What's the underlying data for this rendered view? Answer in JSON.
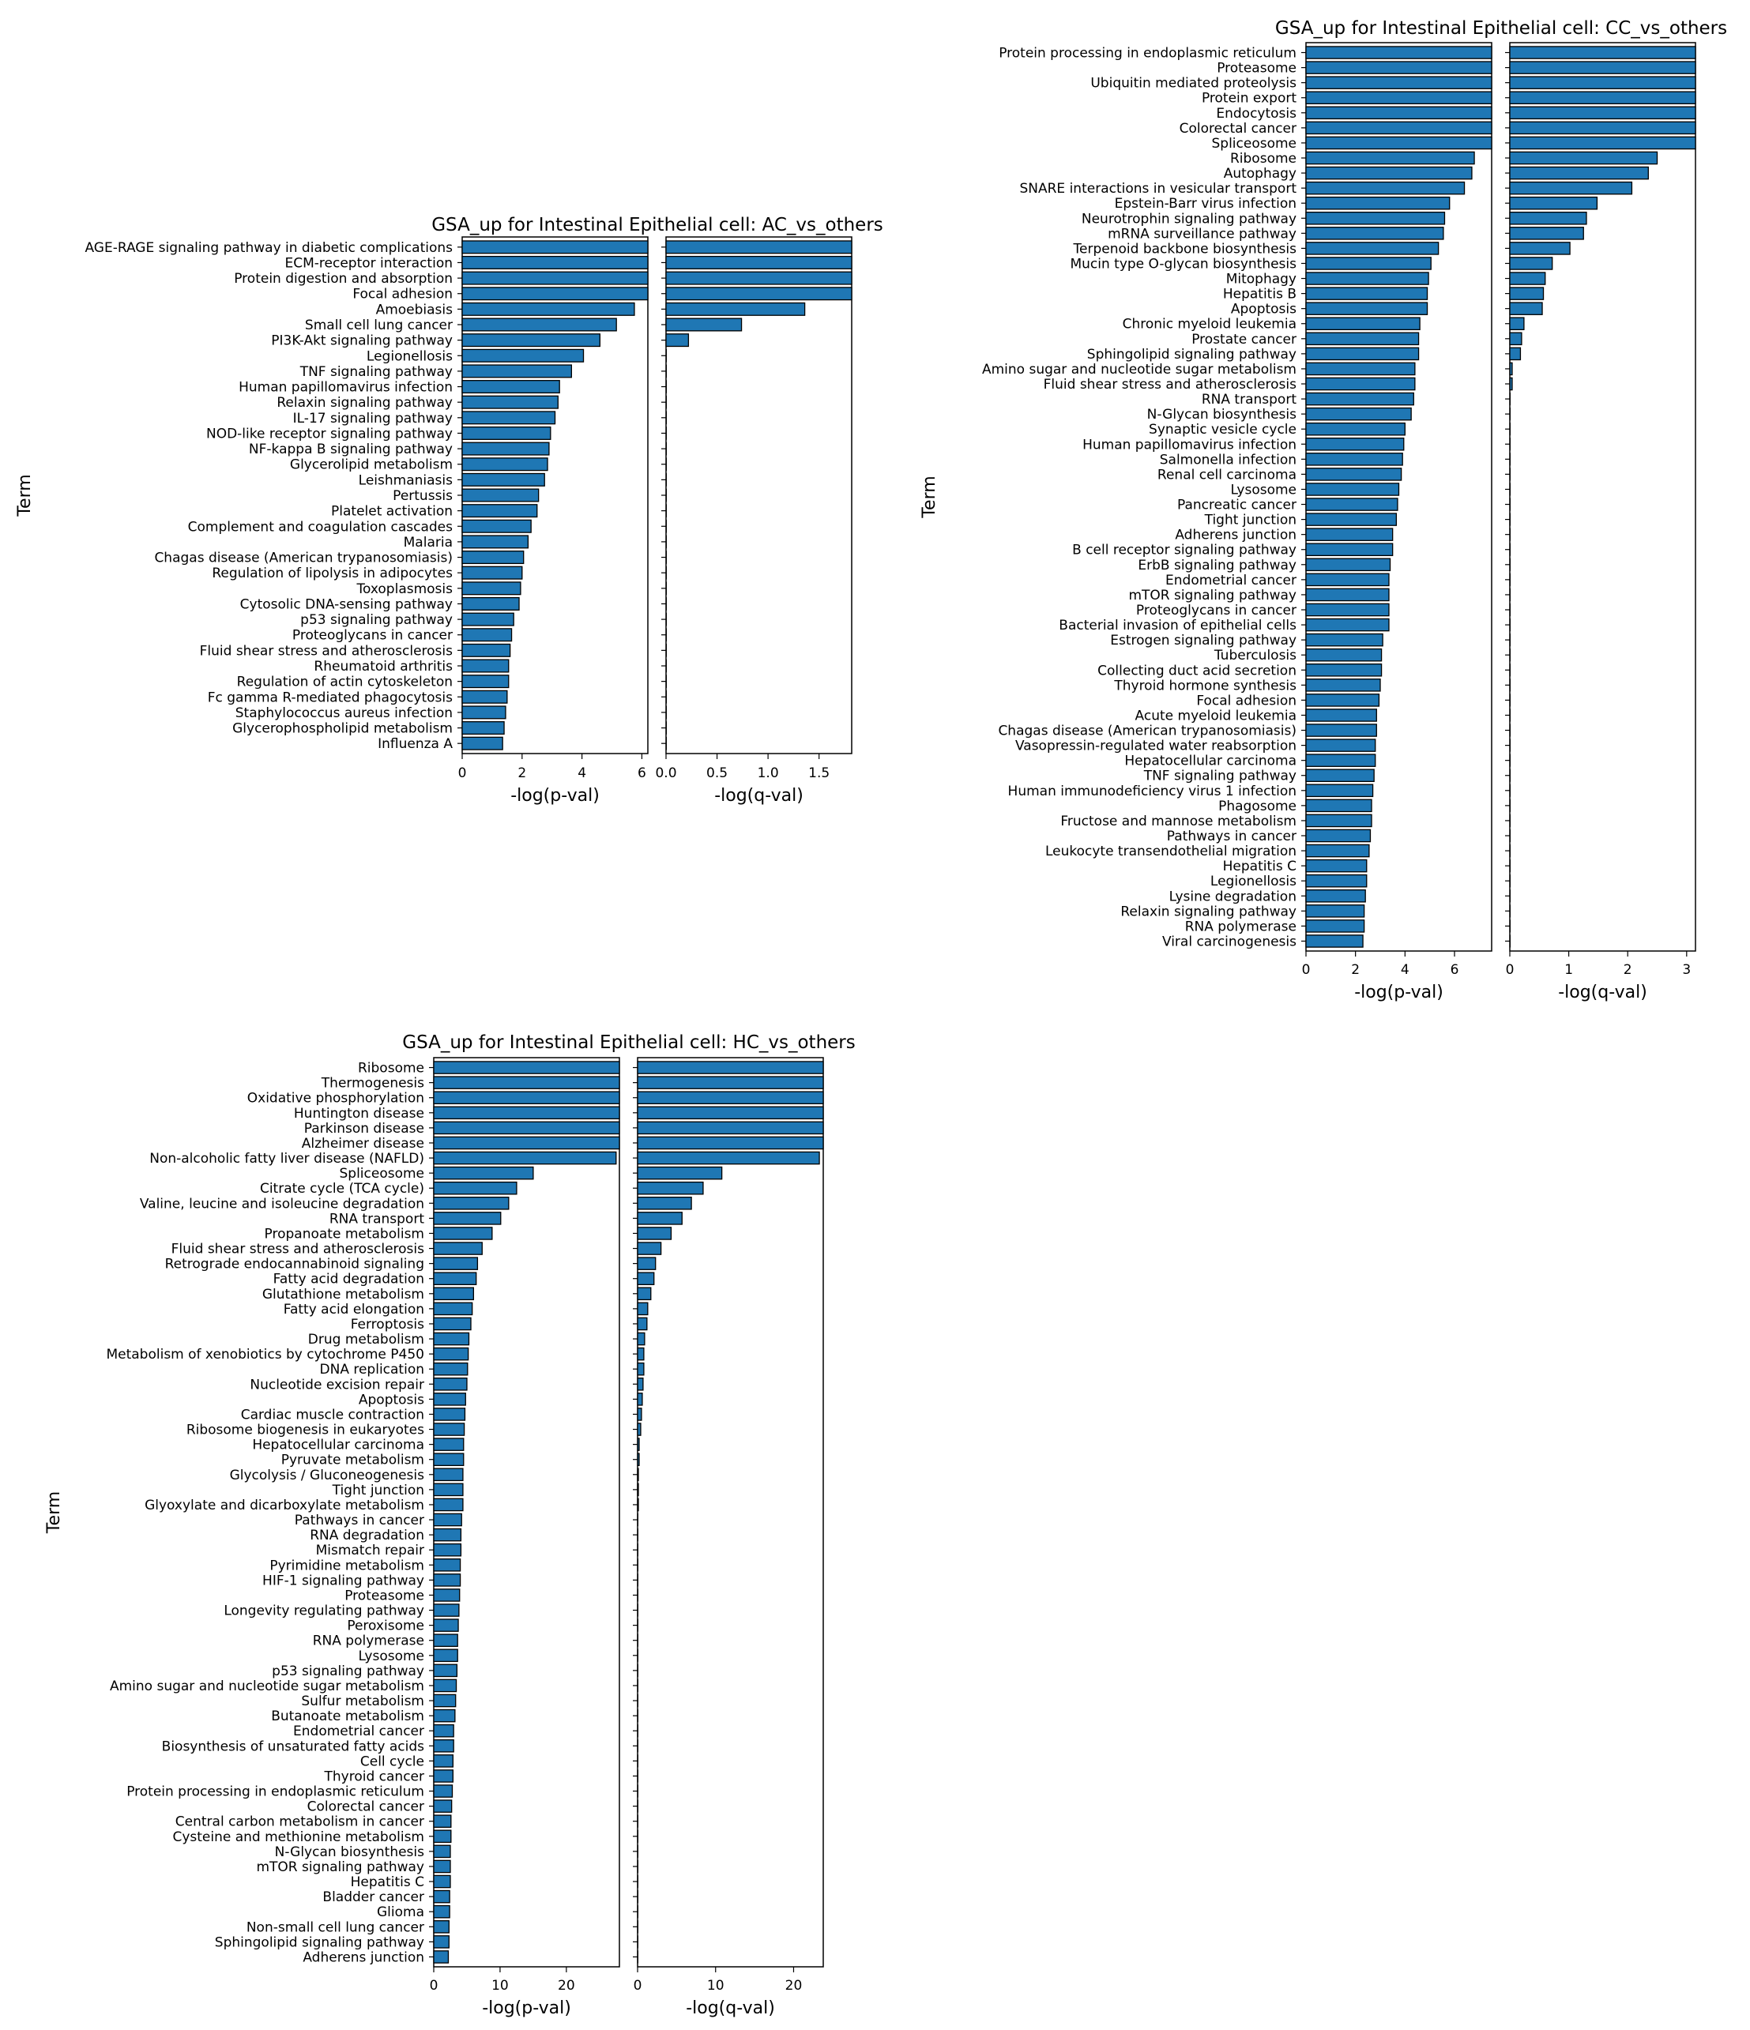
{
  "bar_color": "#1f77b4",
  "edge_color": "#000000",
  "chart_data": [
    {
      "type": "bar",
      "orientation": "horizontal",
      "title": "GSA_up for Intestinal Epithelial cell: AC_vs_others",
      "ylabel": "Term",
      "xlabel_p": "-log(p-val)",
      "xlabel_q": "-log(q-val)",
      "xlim_p": [
        0,
        6.2
      ],
      "xlim_q": [
        0,
        1.82
      ],
      "xticks_p": [
        0,
        2,
        4,
        6
      ],
      "xticks_q": [
        "0.0",
        "0.5",
        "1.0",
        "1.5"
      ],
      "categories": [
        "AGE-RAGE signaling pathway in diabetic complications",
        "ECM-receptor interaction",
        "Protein digestion and absorption",
        "Focal adhesion",
        "Amoebiasis",
        "Small cell lung cancer",
        "PI3K-Akt signaling pathway",
        "Legionellosis",
        "TNF signaling pathway",
        "Human papillomavirus infection",
        "Relaxin signaling pathway",
        "IL-17 signaling pathway",
        "NOD-like receptor signaling pathway",
        "NF-kappa B signaling pathway",
        "Glycerolipid metabolism",
        "Leishmaniasis",
        "Pertussis",
        "Platelet activation",
        "Complement and coagulation cascades",
        "Malaria",
        "Chagas disease (American trypanosomiasis)",
        "Regulation of lipolysis in adipocytes",
        "Toxoplasmosis",
        "Cytosolic DNA-sensing pathway",
        "p53 signaling pathway",
        "Proteoglycans in cancer",
        "Fluid shear stress and atherosclerosis",
        "Rheumatoid arthritis",
        "Regulation of actin cytoskeleton",
        "Fc gamma R-mediated phagocytosis",
        "Staphylococcus aureus infection",
        "Glycerophospholipid metabolism",
        "Influenza A"
      ],
      "neg_log_p": [
        6.2,
        6.2,
        6.2,
        6.2,
        5.75,
        5.15,
        4.6,
        4.05,
        3.65,
        3.25,
        3.2,
        3.1,
        2.95,
        2.9,
        2.85,
        2.75,
        2.55,
        2.5,
        2.3,
        2.2,
        2.05,
        2.0,
        1.95,
        1.9,
        1.72,
        1.65,
        1.6,
        1.55,
        1.55,
        1.5,
        1.45,
        1.4,
        1.35
      ],
      "neg_log_q": [
        1.82,
        1.82,
        1.82,
        1.82,
        1.36,
        0.74,
        0.22,
        0,
        0,
        0,
        0,
        0,
        0,
        0,
        0,
        0,
        0,
        0,
        0,
        0,
        0,
        0,
        0,
        0,
        0,
        0,
        0,
        0,
        0,
        0,
        0,
        0,
        0
      ]
    },
    {
      "type": "bar",
      "orientation": "horizontal",
      "title": "GSA_up for Intestinal Epithelial cell: CC_vs_others",
      "ylabel": "Term",
      "xlabel_p": "-log(p-val)",
      "xlabel_q": "-log(q-val)",
      "xlim_p": [
        0,
        7.5
      ],
      "xlim_q": [
        0,
        3.15
      ],
      "xticks_p": [
        0,
        2,
        4,
        6
      ],
      "xticks_q": [
        "0",
        "1",
        "2",
        "3"
      ],
      "categories": [
        "Protein processing in endoplasmic reticulum",
        "Proteasome",
        "Ubiquitin mediated proteolysis",
        "Protein export",
        "Endocytosis",
        "Colorectal cancer",
        "Spliceosome",
        "Ribosome",
        "Autophagy",
        "SNARE interactions in vesicular transport",
        "Epstein-Barr virus infection",
        "Neurotrophin signaling pathway",
        "mRNA surveillance pathway",
        "Terpenoid backbone biosynthesis",
        "Mucin type O-glycan biosynthesis",
        "Mitophagy",
        "Hepatitis B",
        "Apoptosis",
        "Chronic myeloid leukemia",
        "Prostate cancer",
        "Sphingolipid signaling pathway",
        "Amino sugar and nucleotide sugar metabolism",
        "Fluid shear stress and atherosclerosis",
        "RNA transport",
        "N-Glycan biosynthesis",
        "Synaptic vesicle cycle",
        "Human papillomavirus infection",
        "Salmonella infection",
        "Renal cell carcinoma",
        "Lysosome",
        "Pancreatic cancer",
        "Tight junction",
        "Adherens junction",
        "B cell receptor signaling pathway",
        "ErbB signaling pathway",
        "Endometrial cancer",
        "mTOR signaling pathway",
        "Proteoglycans in cancer",
        "Bacterial invasion of epithelial cells",
        "Estrogen signaling pathway",
        "Tuberculosis",
        "Collecting duct acid secretion",
        "Thyroid hormone synthesis",
        "Focal adhesion",
        "Acute myeloid leukemia",
        "Chagas disease (American trypanosomiasis)",
        "Vasopressin-regulated water reabsorption",
        "Hepatocellular carcinoma",
        "TNF signaling pathway",
        "Human immunodeficiency virus 1 infection",
        "Phagosome",
        "Fructose and mannose metabolism",
        "Pathways in cancer",
        "Leukocyte transendothelial migration",
        "Hepatitis C",
        "Legionellosis",
        "Lysine degradation",
        "Relaxin signaling pathway",
        "RNA polymerase",
        "Viral carcinogenesis"
      ],
      "neg_log_p": [
        7.5,
        7.5,
        7.5,
        7.5,
        7.5,
        7.5,
        7.5,
        6.8,
        6.7,
        6.4,
        5.8,
        5.6,
        5.55,
        5.35,
        5.05,
        4.95,
        4.9,
        4.9,
        4.6,
        4.55,
        4.55,
        4.4,
        4.4,
        4.35,
        4.25,
        4.0,
        3.95,
        3.9,
        3.85,
        3.75,
        3.7,
        3.65,
        3.5,
        3.5,
        3.4,
        3.35,
        3.35,
        3.35,
        3.35,
        3.1,
        3.05,
        3.05,
        3.0,
        2.95,
        2.85,
        2.85,
        2.8,
        2.8,
        2.75,
        2.7,
        2.65,
        2.65,
        2.6,
        2.55,
        2.45,
        2.45,
        2.4,
        2.35,
        2.35,
        2.3
      ],
      "neg_log_q": [
        3.15,
        3.15,
        3.15,
        3.15,
        3.15,
        3.15,
        3.15,
        2.5,
        2.35,
        2.07,
        1.48,
        1.3,
        1.25,
        1.02,
        0.72,
        0.6,
        0.57,
        0.55,
        0.24,
        0.2,
        0.18,
        0.04,
        0.04,
        0,
        0,
        0,
        0,
        0,
        0,
        0,
        0,
        0,
        0,
        0,
        0,
        0,
        0,
        0,
        0,
        0,
        0,
        0,
        0,
        0,
        0,
        0,
        0,
        0,
        0,
        0,
        0,
        0,
        0,
        0,
        0,
        0,
        0,
        0,
        0,
        0
      ]
    },
    {
      "type": "bar",
      "orientation": "horizontal",
      "title": "GSA_up for Intestinal Epithelial cell: HC_vs_others",
      "ylabel": "Term",
      "xlabel_p": "-log(p-val)",
      "xlabel_q": "-log(q-val)",
      "xlim_p": [
        0,
        28
      ],
      "xlim_q": [
        0,
        23.8
      ],
      "xticks_p": [
        0,
        10,
        20
      ],
      "xticks_q": [
        "0",
        "10",
        "20"
      ],
      "categories": [
        "Ribosome",
        "Thermogenesis",
        "Oxidative phosphorylation",
        "Huntington disease",
        "Parkinson disease",
        "Alzheimer disease",
        "Non-alcoholic fatty liver disease (NAFLD)",
        "Spliceosome",
        "Citrate cycle (TCA cycle)",
        "Valine, leucine and isoleucine degradation",
        "RNA transport",
        "Propanoate metabolism",
        "Fluid shear stress and atherosclerosis",
        "Retrograde endocannabinoid signaling",
        "Fatty acid degradation",
        "Glutathione metabolism",
        "Fatty acid elongation",
        "Ferroptosis",
        "Drug metabolism",
        "Metabolism of xenobiotics by cytochrome P450",
        "DNA replication",
        "Nucleotide excision repair",
        "Apoptosis",
        "Cardiac muscle contraction",
        "Ribosome biogenesis in eukaryotes",
        "Hepatocellular carcinoma",
        "Pyruvate metabolism",
        "Glycolysis / Gluconeogenesis",
        "Tight junction",
        "Glyoxylate and dicarboxylate metabolism",
        "Pathways in cancer",
        "RNA degradation",
        "Mismatch repair",
        "Pyrimidine metabolism",
        "HIF-1 signaling pathway",
        "Proteasome",
        "Longevity regulating pathway",
        "Peroxisome",
        "RNA polymerase",
        "Lysosome",
        "p53 signaling pathway",
        "Amino sugar and nucleotide sugar metabolism",
        "Sulfur metabolism",
        "Butanoate metabolism",
        "Endometrial cancer",
        "Biosynthesis of unsaturated fatty acids",
        "Cell cycle",
        "Thyroid cancer",
        "Protein processing in endoplasmic reticulum",
        "Colorectal cancer",
        "Central carbon metabolism in cancer",
        "Cysteine and methionine metabolism",
        "N-Glycan biosynthesis",
        "mTOR signaling pathway",
        "Hepatitis C",
        "Bladder cancer",
        "Glioma",
        "Non-small cell lung cancer",
        "Sphingolipid signaling pathway",
        "Adherens junction"
      ],
      "neg_log_p": [
        28,
        28,
        28,
        28,
        28,
        28,
        27.5,
        15.0,
        12.5,
        11.3,
        10.1,
        8.8,
        7.3,
        6.6,
        6.4,
        6.0,
        5.8,
        5.6,
        5.3,
        5.2,
        5.1,
        5.0,
        4.8,
        4.7,
        4.6,
        4.5,
        4.5,
        4.4,
        4.4,
        4.4,
        4.2,
        4.1,
        4.1,
        4.0,
        4.0,
        3.9,
        3.8,
        3.7,
        3.6,
        3.6,
        3.5,
        3.4,
        3.3,
        3.2,
        3.0,
        3.0,
        2.9,
        2.9,
        2.8,
        2.7,
        2.6,
        2.6,
        2.5,
        2.5,
        2.5,
        2.4,
        2.4,
        2.3,
        2.3,
        2.2
      ],
      "neg_log_q": [
        23.8,
        23.8,
        23.8,
        23.8,
        23.8,
        23.8,
        23.3,
        10.8,
        8.4,
        6.9,
        5.7,
        4.3,
        3.0,
        2.3,
        2.1,
        1.7,
        1.3,
        1.2,
        0.9,
        0.8,
        0.8,
        0.7,
        0.6,
        0.5,
        0.4,
        0.2,
        0.2,
        0.1,
        0.1,
        0.1,
        0,
        0,
        0,
        0,
        0,
        0,
        0,
        0,
        0,
        0,
        0,
        0,
        0,
        0,
        0,
        0,
        0,
        0,
        0,
        0,
        0,
        0,
        0,
        0,
        0,
        0,
        0,
        0,
        0,
        0
      ]
    }
  ]
}
